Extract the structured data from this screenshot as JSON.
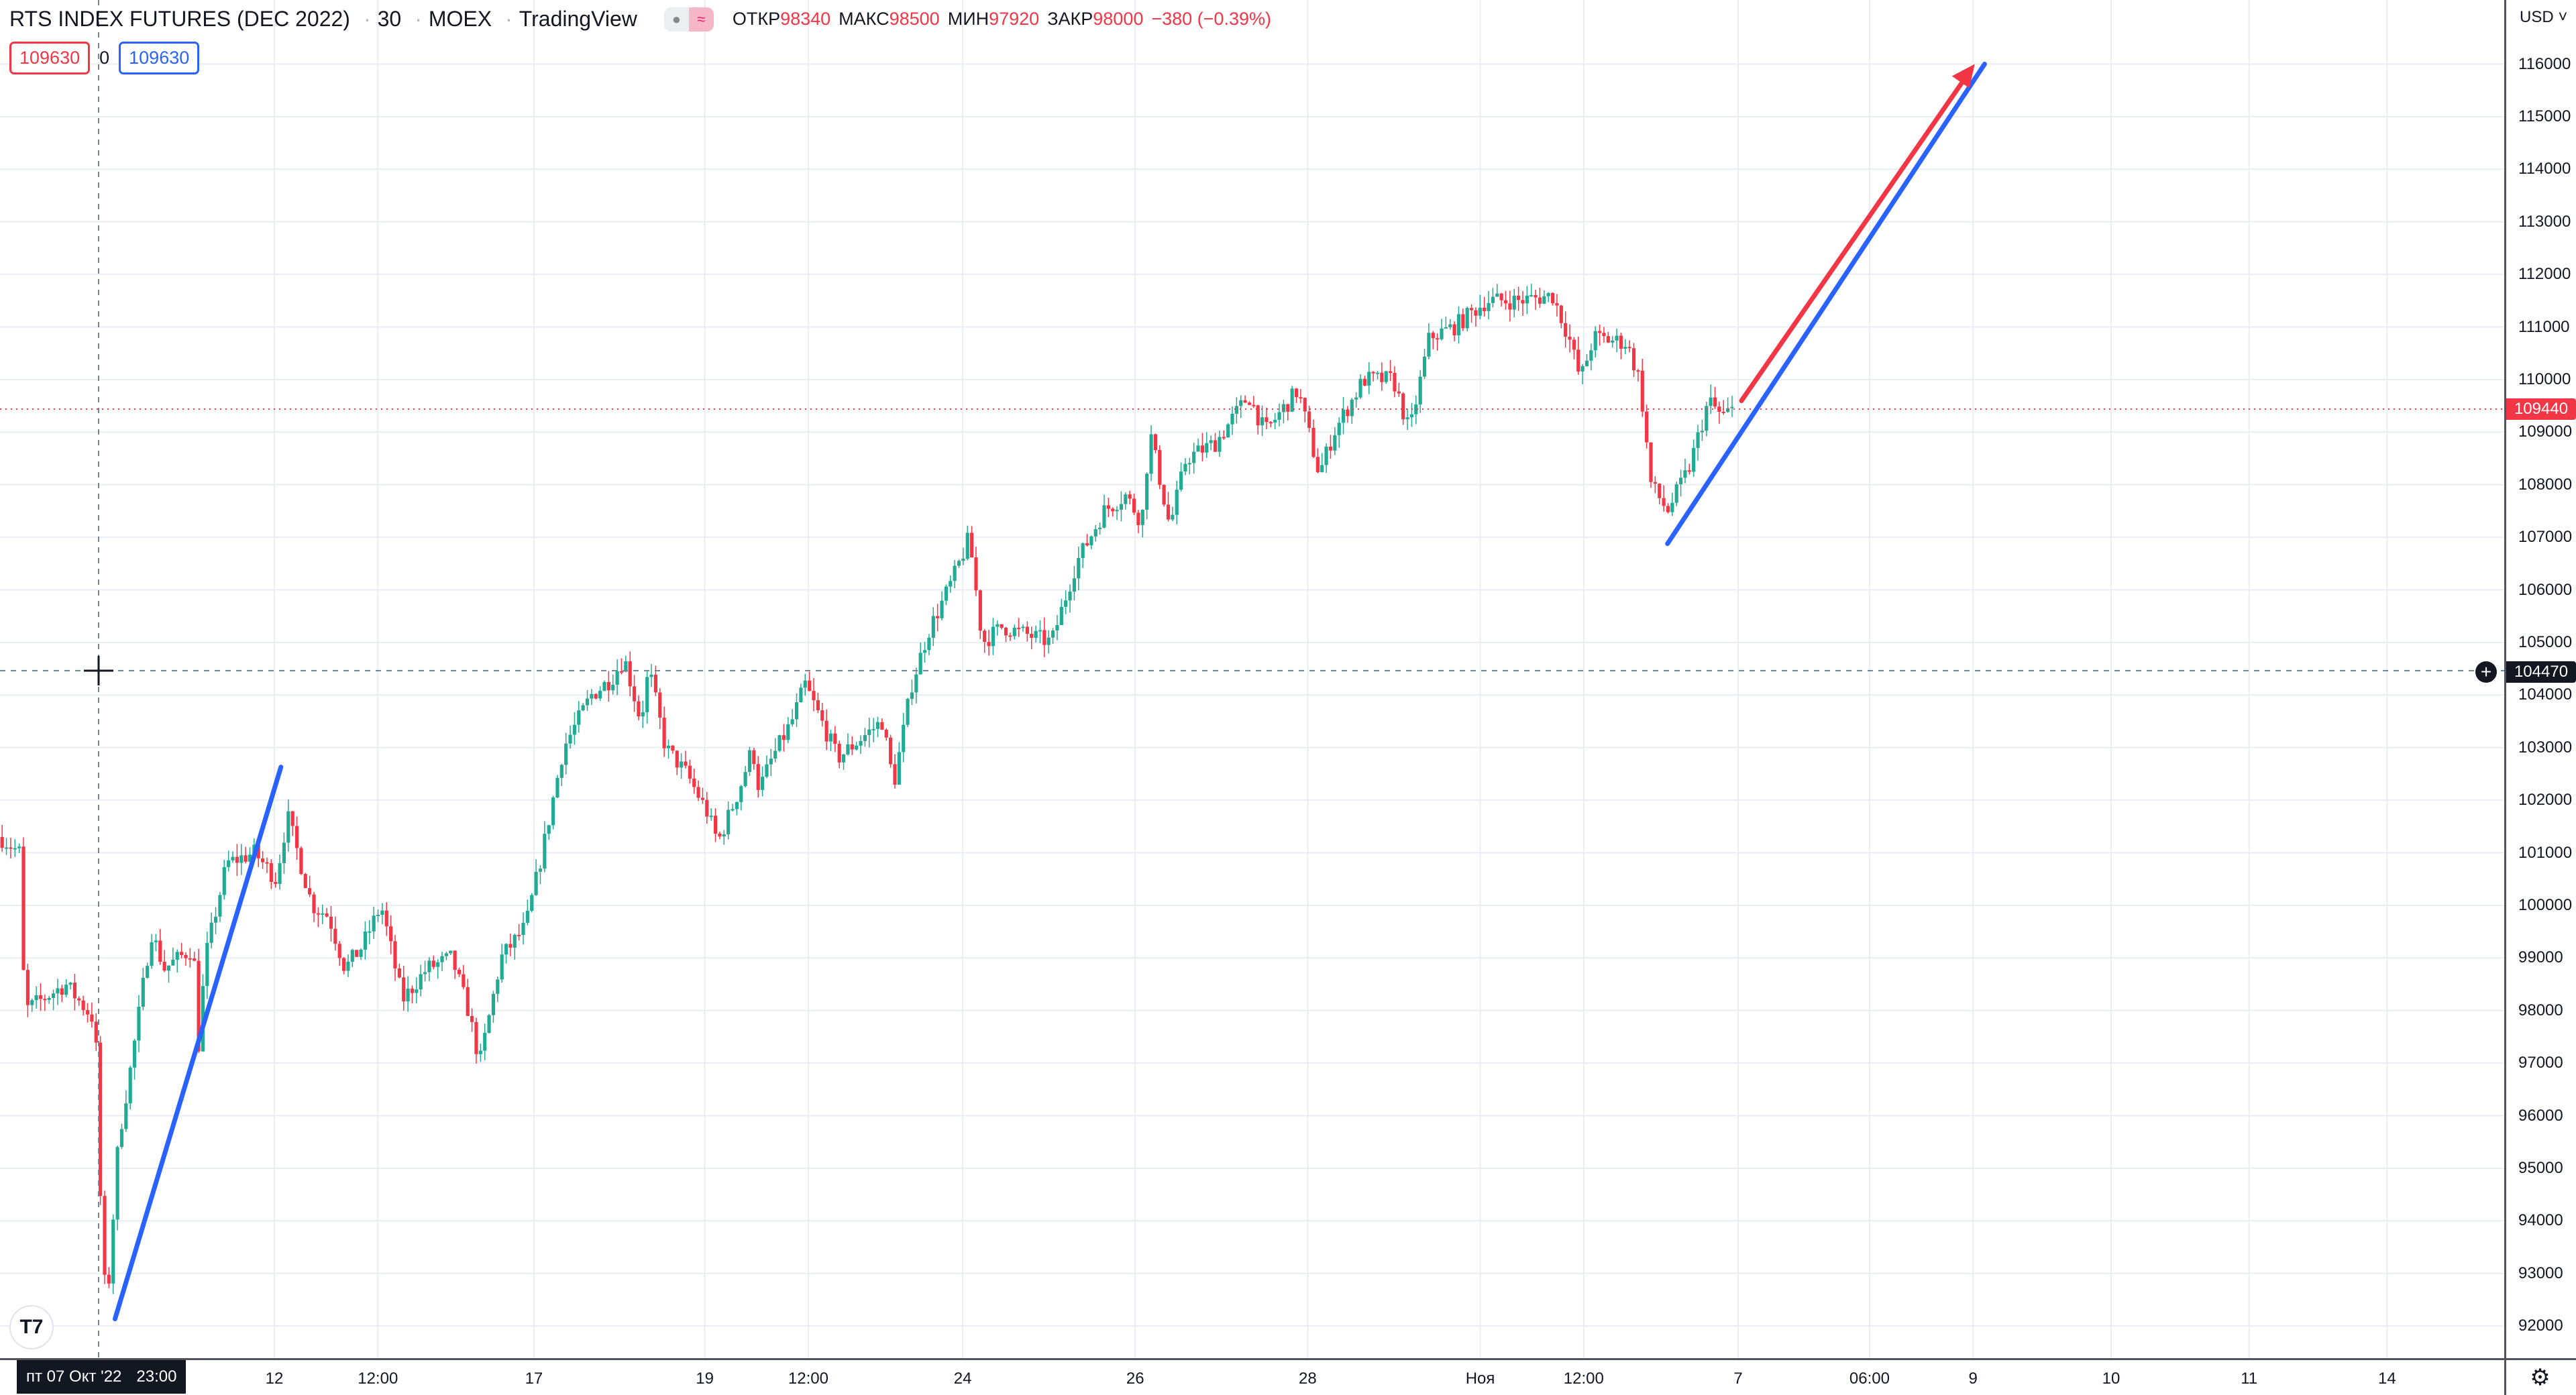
{
  "legend": {
    "title": "RTS INDEX FUTURES (DEC 2022)",
    "interval": "30",
    "exchange": "MOEX",
    "source": "TradingView",
    "open_label": "ОТКР",
    "open": "98340",
    "high_label": "МАКС",
    "high": "98500",
    "low_label": "МИН",
    "low": "97920",
    "close_label": "ЗАКР",
    "close": "98000",
    "change": "−380 (−0.39%)"
  },
  "badges": {
    "sell": "109630",
    "spread": "0",
    "buy": "109630"
  },
  "currency": "USD",
  "price_axis": {
    "labels": [
      "116000",
      "115000",
      "114000",
      "113000",
      "112000",
      "111000",
      "110000",
      "109000",
      "108000",
      "107000",
      "106000",
      "105000",
      "104000",
      "103000",
      "102000",
      "101000",
      "100000",
      "99000",
      "98000",
      "97000",
      "96000",
      "95000",
      "94000",
      "93000",
      "92000"
    ],
    "last_price": "109440",
    "crosshair_price": "104470"
  },
  "time_axis": {
    "labels": [
      "12",
      "12:00",
      "17",
      "19",
      "12:00",
      "24",
      "26",
      "28",
      "Ноя",
      "12:00",
      "7",
      "06:00",
      "9",
      "10",
      "11",
      "14"
    ],
    "crosshair_date": "пт 07 Окт '22",
    "crosshair_time": "23:00"
  },
  "colors": {
    "up": "#22ab94",
    "down": "#f23645",
    "line_blue": "#2962ff",
    "line_red": "#f23645"
  },
  "chart_data": {
    "type": "candlestick",
    "approx_close_path": [
      [
        0,
        101300
      ],
      [
        12,
        101000
      ],
      [
        15,
        98000
      ],
      [
        40,
        98500
      ],
      [
        58,
        97800
      ],
      [
        62,
        93500
      ],
      [
        65,
        92300
      ],
      [
        72,
        95500
      ],
      [
        80,
        97000
      ],
      [
        92,
        99500
      ],
      [
        100,
        98800
      ],
      [
        118,
        99200
      ],
      [
        120,
        97000
      ],
      [
        125,
        99000
      ],
      [
        138,
        100800
      ],
      [
        155,
        101000
      ],
      [
        168,
        100500
      ],
      [
        175,
        101700
      ],
      [
        190,
        100000
      ],
      [
        200,
        99800
      ],
      [
        210,
        98800
      ],
      [
        220,
        99200
      ],
      [
        232,
        100000
      ],
      [
        245,
        98200
      ],
      [
        260,
        98800
      ],
      [
        275,
        99000
      ],
      [
        285,
        98000
      ],
      [
        292,
        97000
      ],
      [
        305,
        99000
      ],
      [
        320,
        99600
      ],
      [
        330,
        101000
      ],
      [
        343,
        103000
      ],
      [
        360,
        104000
      ],
      [
        372,
        104300
      ],
      [
        380,
        104700
      ],
      [
        390,
        103500
      ],
      [
        395,
        104500
      ],
      [
        405,
        103000
      ],
      [
        418,
        102500
      ],
      [
        430,
        101800
      ],
      [
        437,
        101200
      ],
      [
        450,
        102200
      ],
      [
        458,
        103000
      ],
      [
        462,
        102200
      ],
      [
        470,
        102800
      ],
      [
        482,
        103500
      ],
      [
        490,
        104200
      ],
      [
        500,
        103500
      ],
      [
        510,
        102800
      ],
      [
        525,
        103200
      ],
      [
        537,
        103500
      ],
      [
        544,
        102300
      ],
      [
        555,
        104200
      ],
      [
        565,
        105200
      ],
      [
        580,
        106200
      ],
      [
        590,
        107000
      ],
      [
        598,
        105000
      ],
      [
        610,
        105300
      ],
      [
        640,
        105000
      ],
      [
        655,
        106500
      ],
      [
        672,
        107500
      ],
      [
        685,
        107800
      ],
      [
        695,
        107300
      ],
      [
        700,
        109000
      ],
      [
        712,
        107200
      ],
      [
        722,
        108500
      ],
      [
        740,
        108800
      ],
      [
        760,
        109700
      ],
      [
        770,
        109000
      ],
      [
        790,
        109800
      ],
      [
        803,
        108200
      ],
      [
        812,
        109000
      ],
      [
        830,
        110000
      ],
      [
        848,
        110000
      ],
      [
        858,
        109000
      ],
      [
        870,
        110800
      ],
      [
        885,
        111000
      ],
      [
        905,
        111500
      ],
      [
        925,
        111500
      ],
      [
        945,
        111600
      ],
      [
        955,
        110800
      ],
      [
        962,
        110000
      ],
      [
        970,
        110800
      ],
      [
        990,
        110700
      ],
      [
        998,
        110000
      ],
      [
        1005,
        108000
      ],
      [
        1015,
        107500
      ],
      [
        1028,
        108300
      ],
      [
        1040,
        109600
      ],
      [
        1048,
        109300
      ],
      [
        1056,
        109440
      ]
    ]
  }
}
